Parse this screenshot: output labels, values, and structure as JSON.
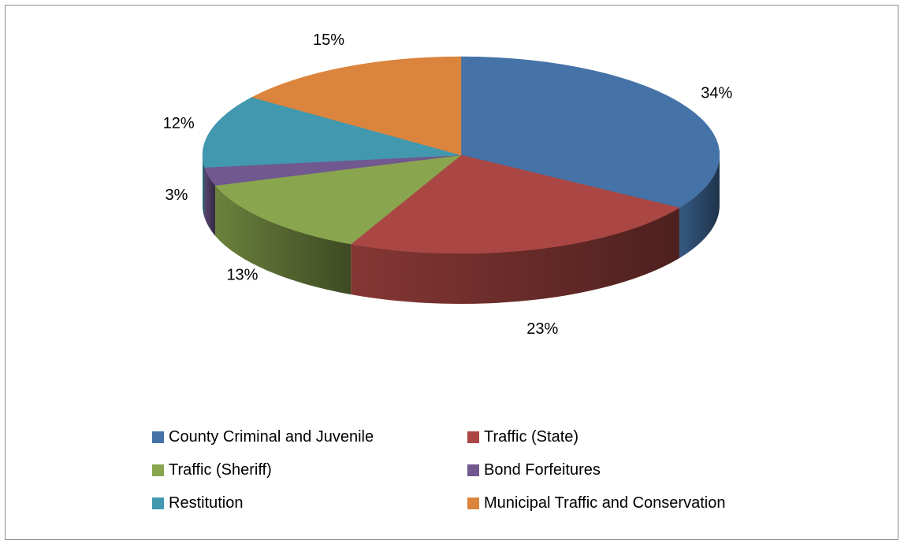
{
  "chart_data": {
    "type": "pie",
    "title": "",
    "three_d": true,
    "legend_position": "bottom",
    "categories": [
      "County Criminal and Juvenile",
      "Traffic (State)",
      "Traffic (Sheriff)",
      "Bond Forfeitures",
      "Restitution",
      "Municipal Traffic and Conservation"
    ],
    "values": [
      34,
      23,
      13,
      3,
      12,
      15
    ],
    "labels": [
      "34%",
      "23%",
      "13%",
      "3%",
      "12%",
      "15%"
    ],
    "colors": [
      "#4572a7",
      "#aa4643",
      "#89a54e",
      "#71588f",
      "#4198af",
      "#db843d"
    ]
  }
}
